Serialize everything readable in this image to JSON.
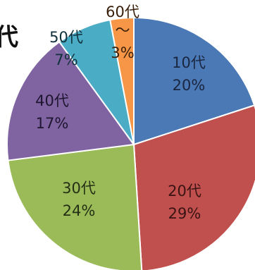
{
  "chart_data": {
    "type": "pie",
    "title_fragment": "代",
    "slices": [
      {
        "label": "10代",
        "value": 20,
        "value_text": "20%",
        "color": "#4b79b5",
        "label_color": "#1a2640"
      },
      {
        "label": "20代",
        "value": 29,
        "value_text": "29%",
        "color": "#c0504d",
        "label_color": "#3a1414"
      },
      {
        "label": "30代",
        "value": 24,
        "value_text": "24%",
        "color": "#9bbb59",
        "label_color": "#243014"
      },
      {
        "label": "40代",
        "value": 17,
        "value_text": "17%",
        "color": "#8064a2",
        "label_color": "#1e1630"
      },
      {
        "label": "50代",
        "value": 7,
        "value_text": "7%",
        "color": "#4bacc6",
        "label_color": "#10303a"
      },
      {
        "label": "60代\n～",
        "value": 3,
        "value_text": "3%",
        "color": "#f79646",
        "label_color": "#3a200a"
      }
    ]
  }
}
